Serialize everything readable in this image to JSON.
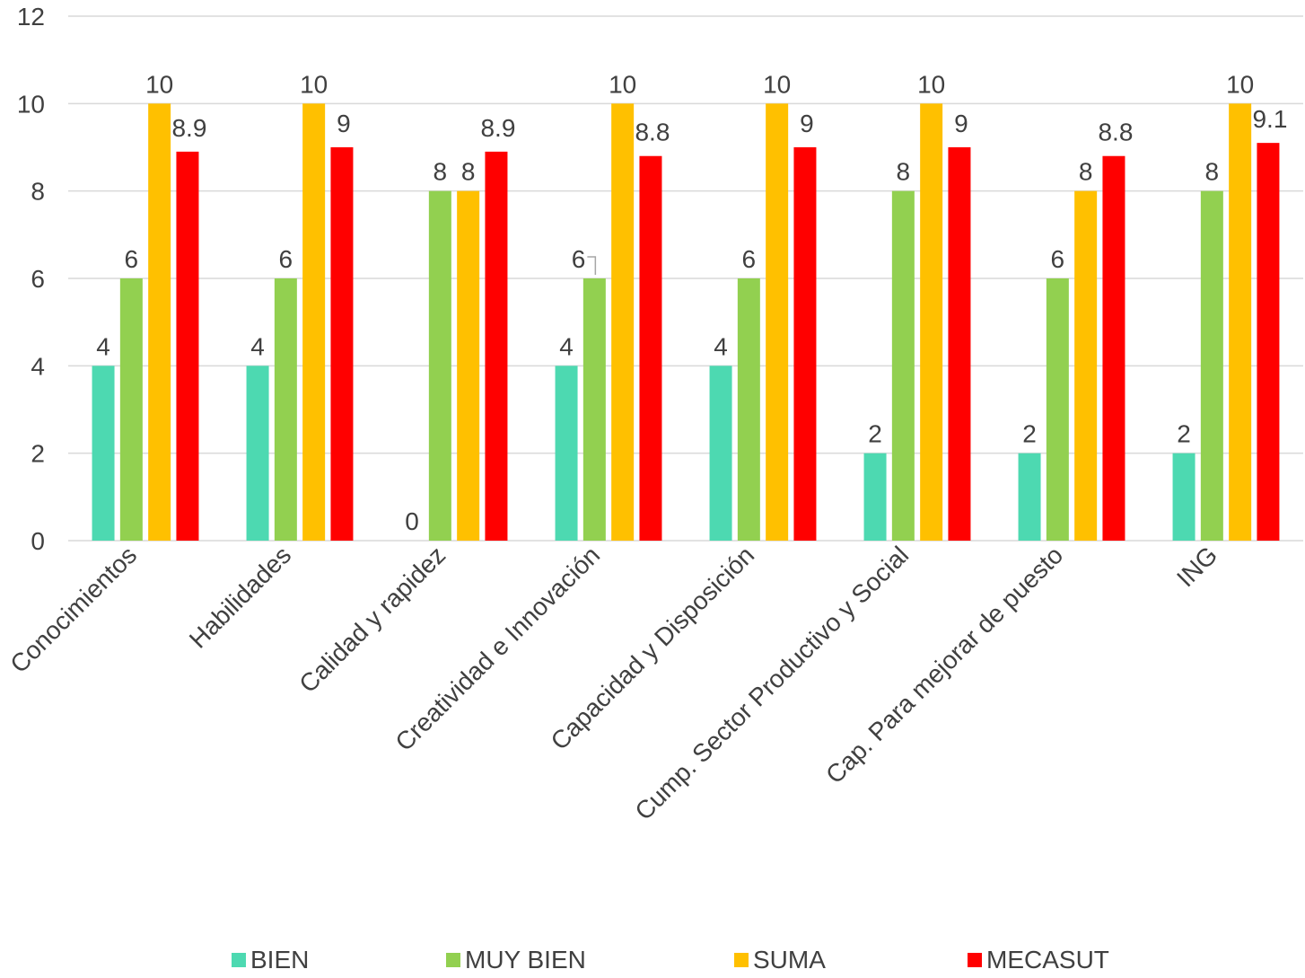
{
  "chart_data": {
    "type": "bar",
    "categories": [
      "Conocimientos",
      "Habilidades",
      "Calidad y rapidez",
      "Creatividad e Innovación",
      "Capacidad y Disposición",
      "Cump. Sector Productivo y Social",
      "Cap. Para mejorar de puesto",
      "ING"
    ],
    "series": [
      {
        "name": "BIEN",
        "color": "#4DD9B1",
        "values": [
          4,
          4,
          0,
          4,
          4,
          2,
          2,
          2
        ]
      },
      {
        "name": "MUY BIEN",
        "color": "#92D050",
        "values": [
          6,
          6,
          8,
          6,
          6,
          8,
          6,
          8
        ]
      },
      {
        "name": "SUMA",
        "color": "#FFC000",
        "values": [
          10,
          10,
          8,
          10,
          10,
          10,
          8,
          10
        ]
      },
      {
        "name": "MECASUT",
        "color": "#FF0000",
        "values": [
          8.9,
          9,
          8.9,
          8.8,
          9,
          9,
          8.8,
          9.1
        ]
      }
    ],
    "ylim": [
      0,
      12
    ],
    "yticks": [
      "0",
      "2",
      "4",
      "6",
      "8",
      "10",
      "12"
    ],
    "grid": true,
    "legend": "bottom",
    "title": "",
    "xlabel": "",
    "ylabel": ""
  }
}
